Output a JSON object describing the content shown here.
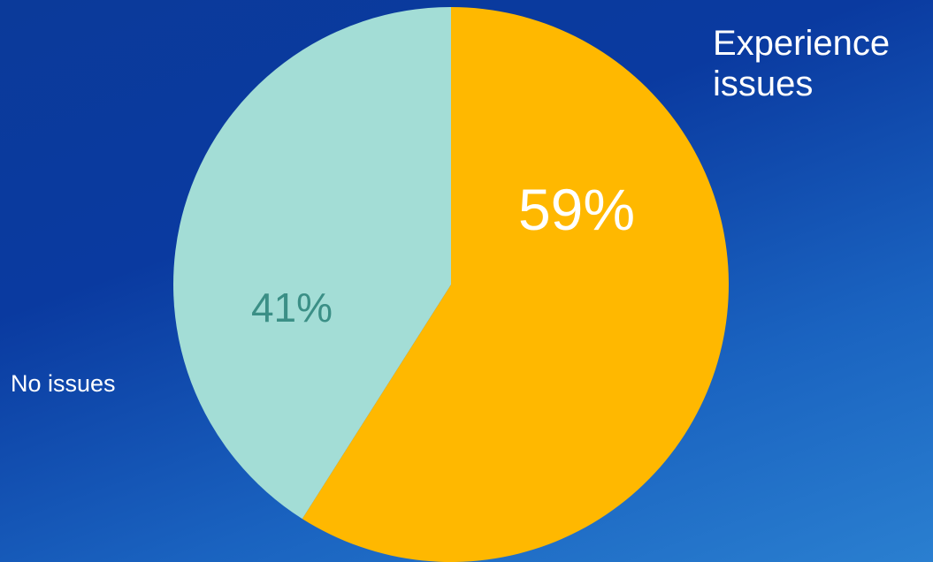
{
  "chart_data": {
    "type": "pie",
    "slices": [
      {
        "label": "Experience issues",
        "value": 59,
        "display": "59%",
        "color": "#ffb800",
        "text_color": "#ffffff"
      },
      {
        "label": "No issues",
        "value": 41,
        "display": "41%",
        "color": "#a3ddd6",
        "text_color": "#3b8f86"
      }
    ],
    "title": "",
    "legend": "labels beside slices"
  }
}
